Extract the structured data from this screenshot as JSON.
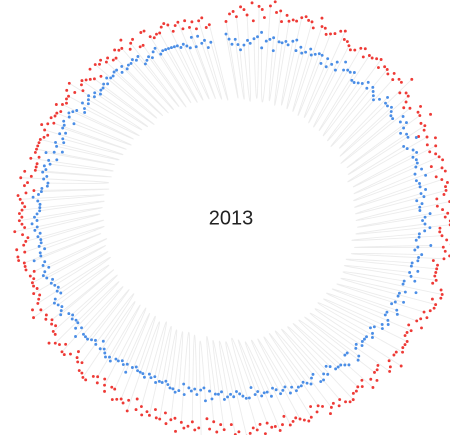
{
  "chart_data": {
    "type": "scatter",
    "layout": "radial",
    "title": "2013",
    "points_per_series": 365,
    "series": [
      {
        "color": "#ee3a36",
        "values": [
          0.78,
          0.81,
          0.82,
          0.8,
          0.84,
          0.83,
          0.81,
          0.86,
          0.79,
          0.85,
          0.84,
          0.81,
          0.86,
          0.88,
          0.84,
          0.85,
          0.81,
          0.84,
          0.82,
          0.83,
          0.83,
          0.85,
          0.86,
          0.85,
          0.85,
          0.83,
          0.88,
          0.85,
          0.85,
          0.83,
          0.84,
          0.85,
          0.87,
          0.88,
          0.85,
          0.85,
          0.84,
          0.83,
          0.84,
          0.86,
          0.87,
          0.84,
          0.86,
          0.86,
          0.87,
          0.88,
          0.85,
          0.87,
          0.87,
          0.86,
          0.88,
          0.86,
          0.88,
          0.88,
          0.92,
          0.85,
          0.87,
          0.87,
          0.85,
          0.83,
          0.85,
          0.89,
          0.87,
          0.87,
          0.91,
          0.86,
          0.87,
          0.86,
          0.83,
          0.86,
          0.89,
          0.85,
          0.88,
          0.85,
          0.87,
          0.88,
          0.89,
          0.84,
          0.88,
          0.89,
          0.85,
          0.87,
          0.89,
          0.88,
          0.88,
          0.87,
          0.84,
          0.89,
          0.84,
          0.86,
          0.88,
          0.87,
          0.89,
          0.89,
          0.85,
          0.85,
          0.86,
          0.88,
          0.9,
          0.87,
          0.88,
          0.9,
          0.88,
          0.84,
          0.86,
          0.86,
          0.86,
          0.86,
          0.87,
          0.86,
          0.9,
          0.91,
          0.91,
          0.88,
          0.9,
          0.9,
          0.89,
          0.87,
          0.89,
          0.87,
          0.86,
          0.89,
          0.84,
          0.86,
          0.85,
          0.85,
          0.87,
          0.87,
          0.87,
          0.88,
          0.86,
          0.86,
          0.91,
          0.86,
          0.88,
          0.89,
          0.84,
          0.85,
          0.85,
          0.88,
          0.86,
          0.89,
          0.84,
          0.86,
          0.85,
          0.86,
          0.86,
          0.88,
          0.88,
          0.87,
          0.85,
          0.87,
          0.85,
          0.86,
          0.88,
          0.84,
          0.83,
          0.85,
          0.82,
          0.86,
          0.87,
          0.86,
          0.85,
          0.84,
          0.85,
          0.86,
          0.82,
          0.85,
          0.87,
          0.85,
          0.85,
          0.83,
          0.87,
          0.83,
          0.85,
          0.84,
          0.86,
          0.87,
          0.87,
          0.85,
          0.86,
          0.82,
          0.87,
          0.84,
          0.82,
          0.85,
          0.81,
          0.84,
          0.8,
          0.88,
          0.84,
          0.85,
          0.82,
          0.84,
          0.85,
          0.83,
          0.87,
          0.82,
          0.83,
          0.85,
          0.81,
          0.84,
          0.84,
          0.81,
          0.84,
          0.83,
          0.85,
          0.82,
          0.84,
          0.8,
          0.86,
          0.82,
          0.84,
          0.83,
          0.84,
          0.85,
          0.81,
          0.81,
          0.84,
          0.82,
          0.8,
          0.83,
          0.81,
          0.82,
          0.85,
          0.85,
          0.84,
          0.84,
          0.81,
          0.82,
          0.81,
          0.79,
          0.82,
          0.84,
          0.84,
          0.81,
          0.83,
          0.84,
          0.86,
          0.82,
          0.82,
          0.8,
          0.81,
          0.8,
          0.82,
          0.81,
          0.86,
          0.82,
          0.85,
          0.82,
          0.81,
          0.8,
          0.82,
          0.8,
          0.81,
          0.81,
          0.8,
          0.81,
          0.79,
          0.82,
          0.82,
          0.82,
          0.84,
          0.84,
          0.81,
          0.84,
          0.81,
          0.8,
          0.79,
          0.81,
          0.84,
          0.8,
          0.81,
          0.82,
          0.81,
          0.82,
          0.81,
          0.8,
          0.81,
          0.82,
          0.83,
          0.8,
          0.77,
          0.81,
          0.8,
          0.83,
          0.79,
          0.82,
          0.78,
          0.78,
          0.78,
          0.81,
          0.78,
          0.8,
          0.8,
          0.8,
          0.8,
          0.8,
          0.79,
          0.78,
          0.8,
          0.82,
          0.8,
          0.78,
          0.8,
          0.79,
          0.79,
          0.78,
          0.81,
          0.79,
          0.78,
          0.79,
          0.79,
          0.81,
          0.78,
          0.82,
          0.76,
          0.78,
          0.79,
          0.78,
          0.77,
          0.76,
          0.8,
          0.75,
          0.8,
          0.79,
          0.8,
          0.78,
          0.79,
          0.77,
          0.77,
          0.8,
          0.79,
          0.79,
          0.82,
          0.77,
          0.79,
          0.8,
          0.76,
          0.76,
          0.81,
          0.81,
          0.78,
          0.77,
          0.78,
          0.78,
          0.8,
          0.81,
          0.8,
          0.77,
          0.79,
          0.8,
          0.77,
          0.8,
          0.77,
          0.79,
          0.76,
          0.79,
          0.8,
          0.76,
          0.77
        ]
      },
      {
        "color": "#4b8ee6",
        "values": [
          0.73,
          0.71,
          0.69,
          0.71,
          0.69,
          0.67,
          0.69,
          0.71,
          0.7,
          0.72,
          0.73,
          0.75,
          0.69,
          0.72,
          0.73,
          0.74,
          0.69,
          0.73,
          0.73,
          0.74,
          0.73,
          0.75,
          0.76,
          0.72,
          0.74,
          0.72,
          0.73,
          0.75,
          0.73,
          0.74,
          0.75,
          0.75,
          0.72,
          0.75,
          0.72,
          0.74,
          0.76,
          0.73,
          0.78,
          0.75,
          0.76,
          0.76,
          0.77,
          0.74,
          0.74,
          0.75,
          0.76,
          0.78,
          0.76,
          0.78,
          0.77,
          0.76,
          0.75,
          0.77,
          0.8,
          0.78,
          0.78,
          0.79,
          0.78,
          0.77,
          0.77,
          0.81,
          0.79,
          0.81,
          0.79,
          0.77,
          0.79,
          0.79,
          0.82,
          0.76,
          0.77,
          0.79,
          0.8,
          0.78,
          0.79,
          0.79,
          0.78,
          0.8,
          0.77,
          0.81,
          0.77,
          0.78,
          0.78,
          0.8,
          0.78,
          0.79,
          0.76,
          0.78,
          0.77,
          0.77,
          0.81,
          0.79,
          0.78,
          0.79,
          0.81,
          0.79,
          0.77,
          0.77,
          0.76,
          0.82,
          0.77,
          0.76,
          0.79,
          0.78,
          0.78,
          0.76,
          0.76,
          0.79,
          0.76,
          0.77,
          0.79,
          0.75,
          0.75,
          0.81,
          0.77,
          0.75,
          0.75,
          0.78,
          0.75,
          0.74,
          0.77,
          0.78,
          0.74,
          0.74,
          0.76,
          0.77,
          0.75,
          0.76,
          0.73,
          0.72,
          0.74,
          0.75,
          0.73,
          0.73,
          0.73,
          0.74,
          0.72,
          0.73,
          0.76,
          0.77,
          0.72,
          0.72,
          0.76,
          0.75,
          0.74,
          0.74,
          0.74,
          0.72,
          0.71,
          0.74,
          0.73,
          0.75,
          0.75,
          0.71,
          0.72,
          0.74,
          0.73,
          0.72,
          0.73,
          0.73,
          0.74,
          0.72,
          0.74,
          0.71,
          0.72,
          0.73,
          0.71,
          0.7,
          0.73,
          0.71,
          0.71,
          0.72,
          0.7,
          0.71,
          0.68,
          0.72,
          0.72,
          0.71,
          0.7,
          0.69,
          0.71,
          0.7,
          0.71,
          0.72,
          0.69,
          0.7,
          0.7,
          0.72,
          0.69,
          0.73,
          0.68,
          0.69,
          0.71,
          0.69,
          0.7,
          0.69,
          0.72,
          0.68,
          0.71,
          0.72,
          0.71,
          0.71,
          0.7,
          0.69,
          0.7,
          0.7,
          0.71,
          0.69,
          0.7,
          0.69,
          0.71,
          0.7,
          0.7,
          0.7,
          0.69,
          0.7,
          0.73,
          0.7,
          0.71,
          0.7,
          0.71,
          0.71,
          0.73,
          0.72,
          0.73,
          0.72,
          0.71,
          0.72,
          0.69,
          0.72,
          0.71,
          0.72,
          0.73,
          0.73,
          0.73,
          0.76,
          0.72,
          0.74,
          0.72,
          0.72,
          0.73,
          0.72,
          0.73,
          0.76,
          0.75,
          0.74,
          0.75,
          0.76,
          0.75,
          0.72,
          0.73,
          0.72,
          0.73,
          0.74,
          0.73,
          0.75,
          0.76,
          0.75,
          0.73,
          0.75,
          0.74,
          0.78,
          0.75,
          0.75,
          0.73,
          0.75,
          0.74,
          0.74,
          0.75,
          0.74,
          0.76,
          0.75,
          0.77,
          0.75,
          0.76,
          0.75,
          0.74,
          0.74,
          0.74,
          0.75,
          0.77,
          0.75,
          0.74,
          0.74,
          0.72,
          0.72,
          0.74,
          0.73,
          0.75,
          0.74,
          0.75,
          0.73,
          0.74,
          0.71,
          0.76,
          0.73,
          0.7,
          0.73,
          0.74,
          0.71,
          0.72,
          0.74,
          0.72,
          0.74,
          0.74,
          0.75,
          0.71,
          0.74,
          0.75,
          0.74,
          0.73,
          0.7,
          0.71,
          0.73,
          0.71,
          0.72,
          0.73,
          0.71,
          0.72,
          0.7,
          0.71,
          0.71,
          0.72,
          0.71,
          0.73,
          0.72,
          0.72,
          0.73,
          0.73,
          0.71,
          0.73,
          0.71,
          0.72,
          0.72,
          0.73,
          0.72,
          0.73,
          0.69,
          0.7,
          0.71,
          0.7,
          0.72,
          0.73,
          0.7,
          0.71,
          0.71,
          0.71,
          0.71,
          0.71,
          0.71,
          0.7,
          0.71,
          0.7,
          0.69,
          0.73,
          0.69,
          0.73,
          0.7,
          0.71,
          0.68,
          0.7
        ]
      }
    ],
    "background_strands": {
      "color": "#dddddd"
    }
  }
}
